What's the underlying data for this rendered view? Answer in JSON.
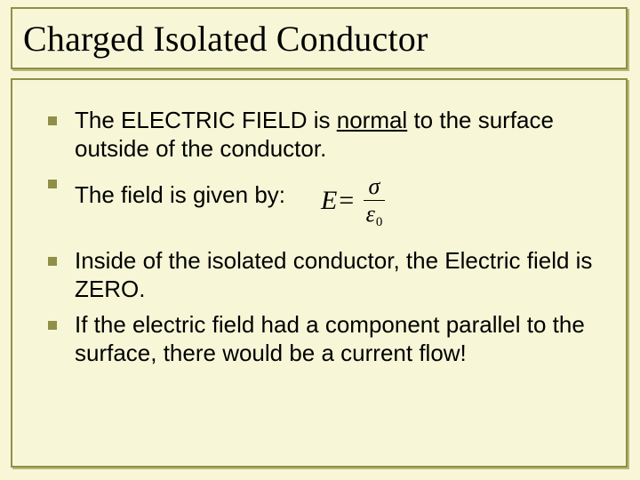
{
  "title": "Charged Isolated Conductor",
  "bullets": {
    "b1_part1": "The ELECTRIC FIELD is ",
    "b1_underlined": "normal",
    "b1_part2": " to the surface outside of the conductor.",
    "b2": "The field is given by:",
    "b3": "Inside of the isolated conductor, the Electric field is ZERO.",
    "b4": "If the electric field had a component parallel to the surface, there would be a current flow!"
  },
  "formula": {
    "lhs": "E",
    "eq": " = ",
    "numerator": "σ",
    "denominator_sym": "ε",
    "denominator_sub": "0"
  },
  "colors": {
    "background": "#f7f7d8",
    "border": "#8f8f4a",
    "bullet": "#8f8f4a",
    "text": "#000000"
  },
  "typography": {
    "title_family": "Times New Roman",
    "title_size_pt": 30,
    "body_family": "Arial",
    "body_size_pt": 20,
    "formula_family": "Times New Roman",
    "formula_size_pt": 23
  },
  "layout": {
    "slide_width": 720,
    "slide_height": 540
  }
}
